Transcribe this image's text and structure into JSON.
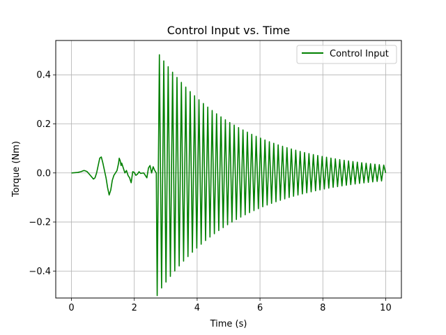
{
  "chart_data": {
    "type": "line",
    "title": "Control Input vs. Time",
    "xlabel": "Time (s)",
    "ylabel": "Torque (Nm)",
    "xlim": [
      -0.5,
      10.5
    ],
    "ylim": [
      -0.51,
      0.54
    ],
    "xticks": [
      0,
      2,
      4,
      6,
      8,
      10
    ],
    "xtick_labels": [
      "0",
      "2",
      "4",
      "6",
      "8",
      "10"
    ],
    "yticks": [
      -0.4,
      -0.2,
      0.0,
      0.2,
      0.4
    ],
    "ytick_labels": [
      "−0.4",
      "−0.2",
      "0.0",
      "0.2",
      "0.4"
    ],
    "grid": true,
    "legend_position": "upper right",
    "series": [
      {
        "name": "Control Input",
        "color": "#008000",
        "segments": [
          {
            "kind": "points",
            "x": [
              0,
              0.2,
              0.3,
              0.4,
              0.45,
              0.5,
              0.6,
              0.7,
              0.75,
              0.8,
              0.85,
              0.9,
              0.95,
              1.0,
              1.05,
              1.1,
              1.15,
              1.2,
              1.25,
              1.3,
              1.35,
              1.4,
              1.45,
              1.5,
              1.52,
              1.55,
              1.58,
              1.6,
              1.65,
              1.7,
              1.75,
              1.8,
              1.85,
              1.9,
              1.95,
              2.0,
              2.05,
              2.1,
              2.15,
              2.2,
              2.3,
              2.4,
              2.45,
              2.5,
              2.55,
              2.6,
              2.65,
              2.7
            ],
            "y": [
              0,
              0.002,
              0.005,
              0.01,
              0.008,
              0.005,
              -0.01,
              -0.025,
              -0.02,
              0.0,
              0.03,
              0.06,
              0.065,
              0.04,
              0.01,
              -0.02,
              -0.06,
              -0.09,
              -0.07,
              -0.03,
              -0.01,
              0.0,
              0.01,
              0.04,
              0.06,
              0.05,
              0.03,
              0.04,
              0.02,
              0.0,
              0.01,
              -0.01,
              -0.02,
              -0.04,
              0.005,
              0.002,
              -0.01,
              -0.005,
              0.005,
              -0.002,
              0.0,
              -0.02,
              0.02,
              0.03,
              0.0,
              0.025,
              0.01,
              0.0
            ]
          },
          {
            "kind": "oscillation",
            "t_start": 2.7,
            "t_end": 10.0,
            "period": 0.14,
            "first_trough": -0.5,
            "first_peak": 0.5,
            "decay": 0.38
          }
        ]
      }
    ]
  }
}
